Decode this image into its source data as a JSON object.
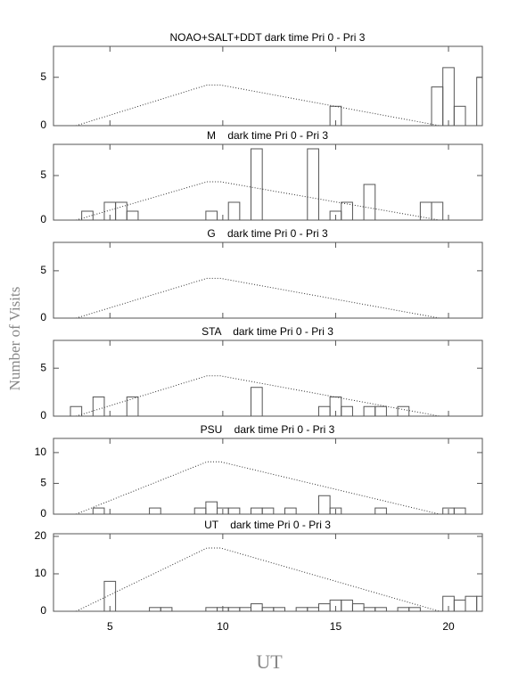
{
  "ylabel": "Number of Visits",
  "xlabel": "UT",
  "chart_data": [
    {
      "type": "histogram",
      "title": "NOAO+SALT+DDT dark time Pri 0 - Pri 3",
      "color": "#555",
      "xlim": [
        2.5,
        21.5
      ],
      "xticks": [
        5,
        10,
        15,
        20
      ],
      "ylim": [
        0,
        8.2
      ],
      "yticks": [
        0,
        5
      ],
      "bins": [
        2.75,
        3.25,
        3.75,
        4.25,
        4.75,
        5.25,
        5.75,
        6.25,
        6.75,
        7.25,
        7.75,
        8.25,
        8.75,
        9.25,
        9.75,
        10.25,
        10.75,
        11.25,
        11.75,
        12.25,
        12.75,
        13.25,
        13.75,
        14.25,
        14.75,
        15.25,
        15.75,
        16.25,
        16.75,
        17.25,
        17.75,
        18.25,
        18.75,
        19.25,
        19.75,
        20.25,
        20.75,
        21.25,
        21.75
      ],
      "values": [
        0,
        0,
        0,
        0,
        0,
        0,
        0,
        0,
        0,
        0,
        0,
        0,
        0,
        0,
        0,
        0,
        0,
        0,
        0,
        0,
        0,
        0,
        0,
        0,
        2,
        0,
        0,
        0,
        0,
        0,
        0,
        0,
        0,
        4,
        6,
        2,
        0,
        5
      ],
      "line": {
        "color": "#333",
        "x": [
          3.5,
          9.3,
          9.9,
          19.6
        ],
        "values": [
          0,
          4.2,
          4.2,
          0
        ]
      }
    },
    {
      "type": "histogram",
      "title": "M    dark time Pri 0 - Pri 3",
      "color": "#555",
      "xlim": [
        2.5,
        21.5
      ],
      "xticks": [
        5,
        10,
        15,
        20
      ],
      "ylim": [
        0,
        8.5
      ],
      "yticks": [
        0,
        5
      ],
      "bins": [
        2.75,
        3.25,
        3.75,
        4.25,
        4.75,
        5.25,
        5.75,
        6.25,
        6.75,
        7.25,
        7.75,
        8.25,
        8.75,
        9.25,
        9.75,
        10.25,
        10.75,
        11.25,
        11.75,
        12.25,
        12.75,
        13.25,
        13.75,
        14.25,
        14.75,
        15.25,
        15.75,
        16.25,
        16.75,
        17.25,
        17.75,
        18.25,
        18.75,
        19.25,
        19.75,
        20.25,
        20.75,
        21.25,
        21.75
      ],
      "values": [
        0,
        0,
        1,
        0,
        2,
        2,
        1,
        0,
        0,
        0,
        0,
        0,
        0,
        1,
        0,
        2,
        0,
        8,
        0,
        0,
        0,
        0,
        8,
        0,
        1,
        2,
        0,
        4,
        0,
        0,
        0,
        0,
        2,
        2,
        0,
        0,
        0,
        0
      ],
      "line": {
        "color": "#333",
        "x": [
          3.5,
          9.3,
          9.9,
          19.6
        ],
        "values": [
          0,
          4.3,
          4.3,
          0
        ]
      }
    },
    {
      "type": "histogram",
      "title": "G    dark time Pri 0 - Pri 3",
      "color": "#555",
      "xlim": [
        2.5,
        21.5
      ],
      "xticks": [
        5,
        10,
        15,
        20
      ],
      "ylim": [
        0,
        8
      ],
      "yticks": [
        0,
        5
      ],
      "bins": [
        2.75,
        3.25,
        3.75,
        4.25,
        4.75,
        5.25,
        5.75,
        6.25,
        6.75,
        7.25,
        7.75,
        8.25,
        8.75,
        9.25,
        9.75,
        10.25,
        10.75,
        11.25,
        11.75,
        12.25,
        12.75,
        13.25,
        13.75,
        14.25,
        14.75,
        15.25,
        15.75,
        16.25,
        16.75,
        17.25,
        17.75,
        18.25,
        18.75,
        19.25,
        19.75,
        20.25,
        20.75,
        21.25,
        21.75
      ],
      "values": [
        0,
        0,
        0,
        0,
        0,
        0,
        0,
        0,
        0,
        0,
        0,
        0,
        0,
        0,
        0,
        0,
        0,
        0,
        0,
        0,
        0,
        0,
        0,
        0,
        0,
        0,
        0,
        0,
        0,
        0,
        0,
        0,
        0,
        0,
        0,
        0,
        0,
        0
      ],
      "line": {
        "color": "#333",
        "x": [
          3.5,
          9.3,
          9.9,
          19.6
        ],
        "values": [
          0,
          4.2,
          4.2,
          0
        ]
      }
    },
    {
      "type": "histogram",
      "title": "STA    dark time Pri 0 - Pri 3",
      "color": "#555",
      "xlim": [
        2.5,
        21.5
      ],
      "xticks": [
        5,
        10,
        15,
        20
      ],
      "ylim": [
        0,
        7.9
      ],
      "yticks": [
        0,
        5
      ],
      "bins": [
        2.75,
        3.25,
        3.75,
        4.25,
        4.75,
        5.25,
        5.75,
        6.25,
        6.75,
        7.25,
        7.75,
        8.25,
        8.75,
        9.25,
        9.75,
        10.25,
        10.75,
        11.25,
        11.75,
        12.25,
        12.75,
        13.25,
        13.75,
        14.25,
        14.75,
        15.25,
        15.75,
        16.25,
        16.75,
        17.25,
        17.75,
        18.25,
        18.75,
        19.25,
        19.75,
        20.25,
        20.75,
        21.25,
        21.75
      ],
      "values": [
        0,
        1,
        0,
        2,
        0,
        0,
        2,
        0,
        0,
        0,
        0,
        0,
        0,
        0,
        0,
        0,
        0,
        3,
        0,
        0,
        0,
        0,
        0,
        1,
        2,
        1,
        0,
        1,
        1,
        0,
        1,
        0,
        0,
        0,
        0,
        0,
        0,
        0
      ],
      "line": {
        "color": "#333",
        "x": [
          3.5,
          9.3,
          9.9,
          19.6
        ],
        "values": [
          0,
          4.2,
          4.2,
          0
        ]
      }
    },
    {
      "type": "histogram",
      "title": "PSU    dark time Pri 0 - Pri 3",
      "color": "#555",
      "xlim": [
        2.5,
        21.5
      ],
      "xticks": [
        5,
        10,
        15,
        20
      ],
      "ylim": [
        0,
        12.3
      ],
      "yticks": [
        0,
        5,
        10
      ],
      "bins": [
        2.75,
        3.25,
        3.75,
        4.25,
        4.75,
        5.25,
        5.75,
        6.25,
        6.75,
        7.25,
        7.75,
        8.25,
        8.75,
        9.25,
        9.75,
        10.25,
        10.75,
        11.25,
        11.75,
        12.25,
        12.75,
        13.25,
        13.75,
        14.25,
        14.75,
        15.25,
        15.75,
        16.25,
        16.75,
        17.25,
        17.75,
        18.25,
        18.75,
        19.25,
        19.75,
        20.25,
        20.75,
        21.25,
        21.75
      ],
      "values": [
        0,
        0,
        0,
        1,
        0,
        0,
        0,
        0,
        1,
        0,
        0,
        0,
        1,
        2,
        1,
        1,
        0,
        1,
        1,
        0,
        1,
        0,
        0,
        3,
        1,
        0,
        0,
        0,
        1,
        0,
        0,
        0,
        0,
        0,
        1,
        1,
        0,
        0
      ],
      "line": {
        "color": "#333",
        "x": [
          3.5,
          9.3,
          9.9,
          19.6
        ],
        "values": [
          0,
          8.5,
          8.5,
          0
        ]
      }
    },
    {
      "type": "histogram",
      "title": "UT    dark time Pri 0 - Pri 3",
      "color": "#555",
      "xlim": [
        2.5,
        21.5
      ],
      "xticks": [
        5,
        10,
        15,
        20
      ],
      "ylim": [
        0,
        20.7
      ],
      "yticks": [
        0,
        10,
        20
      ],
      "bins": [
        2.75,
        3.25,
        3.75,
        4.25,
        4.75,
        5.25,
        5.75,
        6.25,
        6.75,
        7.25,
        7.75,
        8.25,
        8.75,
        9.25,
        9.75,
        10.25,
        10.75,
        11.25,
        11.75,
        12.25,
        12.75,
        13.25,
        13.75,
        14.25,
        14.75,
        15.25,
        15.75,
        16.25,
        16.75,
        17.25,
        17.75,
        18.25,
        18.75,
        19.25,
        19.75,
        20.25,
        20.75,
        21.25,
        21.75
      ],
      "values": [
        0,
        0,
        0,
        0,
        8,
        0,
        0,
        0,
        1,
        1,
        0,
        0,
        0,
        1,
        1,
        1,
        1,
        2,
        1,
        1,
        0,
        1,
        1,
        2,
        3,
        3,
        2,
        1,
        1,
        0,
        1,
        1,
        0,
        0,
        4,
        3,
        4,
        4
      ],
      "line": {
        "color": "#333",
        "x": [
          3.5,
          9.3,
          9.9,
          19.6
        ],
        "values": [
          0,
          16.9,
          16.9,
          0
        ]
      }
    }
  ]
}
